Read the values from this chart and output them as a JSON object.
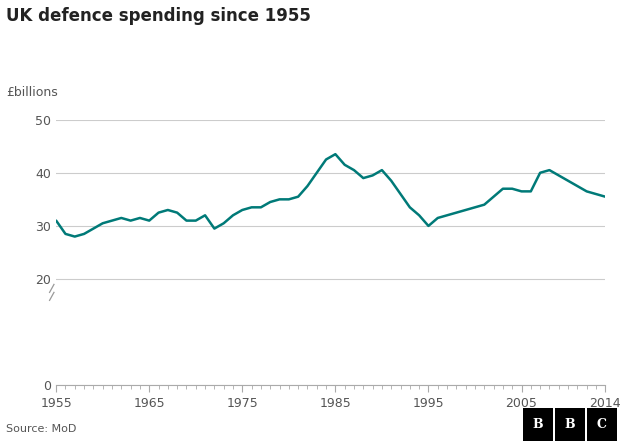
{
  "title": "UK defence spending since 1955",
  "ylabel": "£billions",
  "source": "Source: MoD",
  "bbc_text": "BBC",
  "line_color": "#007a78",
  "background_color": "#ffffff",
  "grid_color": "#cccccc",
  "xlim": [
    1955,
    2014
  ],
  "ylim": [
    0,
    50
  ],
  "yticks": [
    0,
    20,
    30,
    40,
    50
  ],
  "xticks": [
    1955,
    1965,
    1975,
    1985,
    1995,
    2005,
    2014
  ],
  "years": [
    1955,
    1956,
    1957,
    1958,
    1959,
    1960,
    1961,
    1962,
    1963,
    1964,
    1965,
    1966,
    1967,
    1968,
    1969,
    1970,
    1971,
    1972,
    1973,
    1974,
    1975,
    1976,
    1977,
    1978,
    1979,
    1980,
    1981,
    1982,
    1983,
    1984,
    1985,
    1986,
    1987,
    1988,
    1989,
    1990,
    1991,
    1992,
    1993,
    1994,
    1995,
    1996,
    1997,
    1998,
    1999,
    2000,
    2001,
    2002,
    2003,
    2004,
    2005,
    2006,
    2007,
    2008,
    2009,
    2010,
    2011,
    2012,
    2013,
    2014
  ],
  "values": [
    31.0,
    28.5,
    28.0,
    28.5,
    29.5,
    30.5,
    31.0,
    31.5,
    31.0,
    31.5,
    31.0,
    32.5,
    33.0,
    32.5,
    31.0,
    31.0,
    32.0,
    29.5,
    30.5,
    32.0,
    33.0,
    33.5,
    33.5,
    34.5,
    35.0,
    35.0,
    35.5,
    37.5,
    40.0,
    42.5,
    43.5,
    41.5,
    40.5,
    39.0,
    39.5,
    40.5,
    38.5,
    36.0,
    33.5,
    32.0,
    30.0,
    31.5,
    32.0,
    32.5,
    33.0,
    33.5,
    34.0,
    35.5,
    37.0,
    37.0,
    36.5,
    36.5,
    40.0,
    40.5,
    39.5,
    38.5,
    37.5,
    36.5,
    36.0,
    35.5
  ]
}
